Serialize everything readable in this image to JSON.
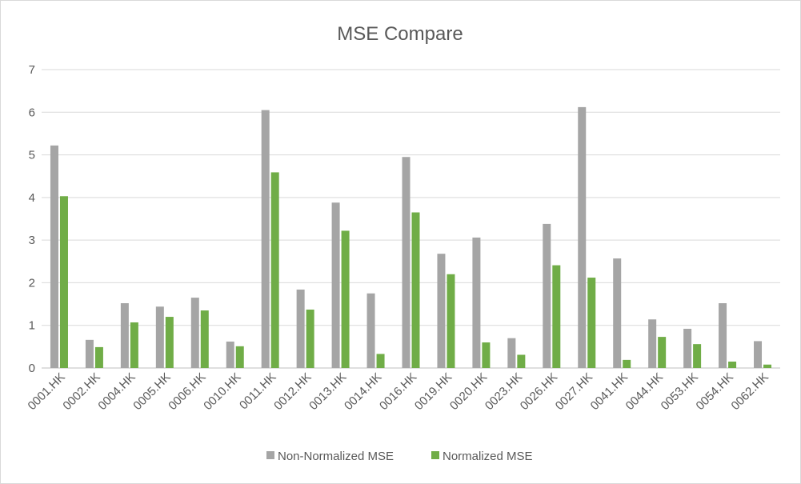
{
  "chart_data": {
    "type": "bar",
    "title": "MSE Compare",
    "xlabel": "",
    "ylabel": "",
    "ylim": [
      0,
      7
    ],
    "yticks": [
      0,
      1,
      2,
      3,
      4,
      5,
      6,
      7
    ],
    "grid": true,
    "legend_position": "bottom",
    "categories": [
      "0001.HK",
      "0002.HK",
      "0004.HK",
      "0005.HK",
      "0006.HK",
      "0010.HK",
      "0011.HK",
      "0012.HK",
      "0013.HK",
      "0014.HK",
      "0016.HK",
      "0019.HK",
      "0020.HK",
      "0023.HK",
      "0026.HK",
      "0027.HK",
      "0041.HK",
      "0044.HK",
      "0053.HK",
      "0054.HK",
      "0062.HK"
    ],
    "series": [
      {
        "name": "Non-Normalized MSE",
        "color": "#a5a5a5",
        "values": [
          5.22,
          0.66,
          1.52,
          1.44,
          1.65,
          0.62,
          6.05,
          1.84,
          3.88,
          1.75,
          4.95,
          2.68,
          3.06,
          0.7,
          3.38,
          6.12,
          2.57,
          1.14,
          0.92,
          1.52,
          0.63
        ]
      },
      {
        "name": "Normalized MSE",
        "color": "#70ad47",
        "values": [
          4.03,
          0.49,
          1.07,
          1.2,
          1.35,
          0.51,
          4.59,
          1.37,
          3.22,
          0.33,
          3.65,
          2.2,
          0.6,
          0.31,
          2.41,
          2.12,
          0.19,
          0.73,
          0.56,
          0.15,
          0.08
        ]
      }
    ]
  }
}
